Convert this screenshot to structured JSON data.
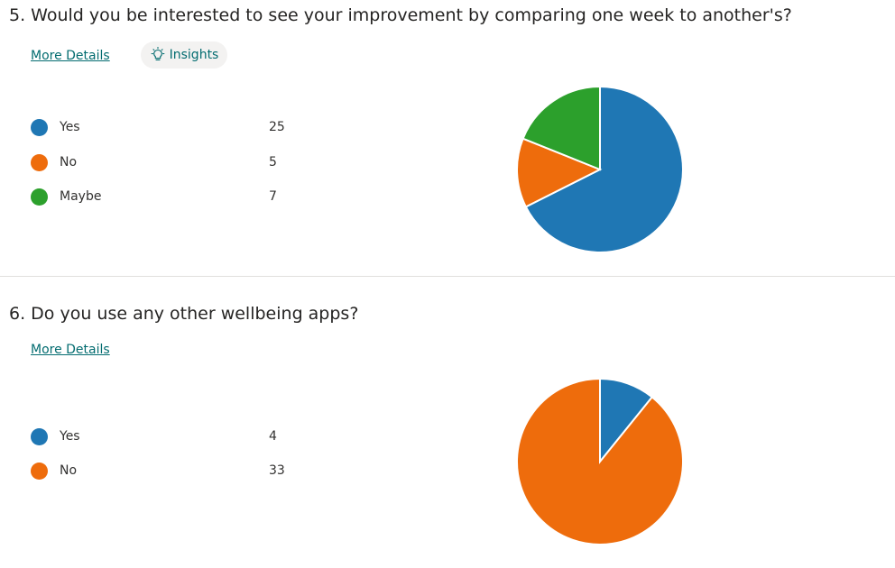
{
  "q1": {
    "title": "5.  Would you be interested to see your improvement by comparing one week to another's?",
    "more_details": "More Details",
    "insights": "Insights"
  },
  "q2": {
    "title": "6.  Do you use any other wellbeing apps?",
    "more_details": "More Details"
  },
  "chart_data": [
    {
      "type": "pie",
      "categories": [
        "Yes",
        "No",
        "Maybe"
      ],
      "values": [
        25,
        5,
        7
      ],
      "colors": [
        "#1f77b4",
        "#ee6c0c",
        "#2ca02c"
      ],
      "legend": "left"
    },
    {
      "type": "pie",
      "categories": [
        "Yes",
        "No"
      ],
      "values": [
        4,
        33
      ],
      "colors": [
        "#1f77b4",
        "#ee6c0c"
      ],
      "legend": "left"
    }
  ]
}
